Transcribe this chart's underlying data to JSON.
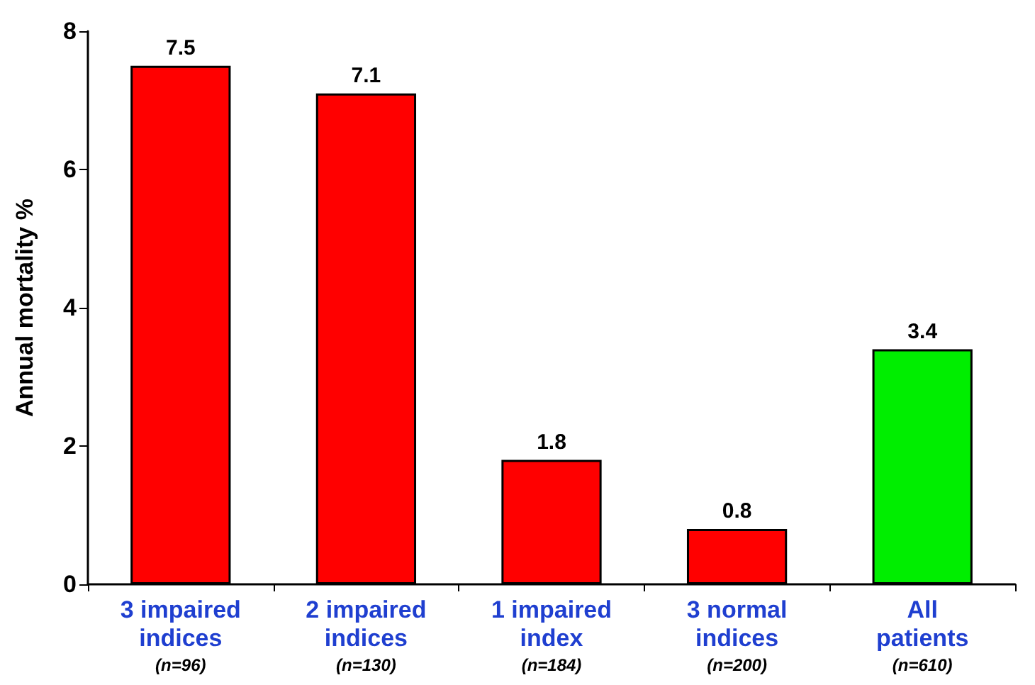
{
  "chart_data": {
    "type": "bar",
    "ylabel": "Annual mortality %",
    "categories": [
      "3 impaired\nindices\n(n=96)",
      "2 impaired\nindices\n(n=130)",
      "1 impaired\nindex\n(n=184)",
      "3 normal\nindices\n(n=200)",
      "All\npatients\n(n=610)"
    ],
    "values": [
      7.5,
      7.1,
      1.8,
      0.8,
      3.4
    ],
    "colors": [
      "#ff0000",
      "#ff0000",
      "#ff0000",
      "#ff0000",
      "#00ee00"
    ],
    "ylim": [
      0,
      8
    ],
    "yticks": [
      0,
      2,
      4,
      6,
      8
    ],
    "grid": false,
    "data_labels": true
  }
}
